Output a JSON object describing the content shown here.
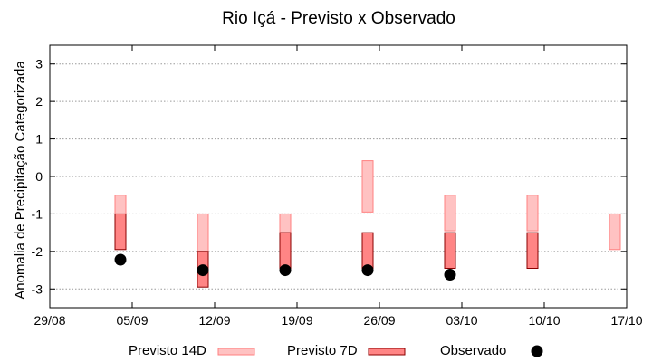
{
  "chart_data": {
    "type": "range-bar",
    "title": "Rio Içá - Previsto x Observado",
    "xlabel": "",
    "ylabel": "Anomalia de Precipitação Categorizada",
    "ylim": [
      -3.5,
      3.5
    ],
    "yticks": [
      3,
      2,
      1,
      0,
      -1,
      -2,
      -3
    ],
    "xlim_days": [
      0,
      49
    ],
    "x_tick_labels": [
      "29/08",
      "05/09",
      "12/09",
      "19/09",
      "26/09",
      "03/10",
      "10/10",
      "17/10"
    ],
    "grid": "horizontal dotted",
    "legend_position": "bottom",
    "colors": {
      "p14_fill": "#ffc2c2",
      "p14_stroke": "#ff8080",
      "p7_fill": "#ff8585",
      "p7_stroke": "#8b0000",
      "obs": "#000000"
    },
    "series": [
      {
        "name": "Previsto 14D",
        "x": [
          "04/09",
          "11/09",
          "18/09",
          "25/09",
          "02/10",
          "09/10",
          "16/10"
        ],
        "low": [
          -1.0,
          -2.0,
          -1.5,
          -0.95,
          -1.45,
          -1.45,
          -1.95
        ],
        "high": [
          -0.5,
          -1.0,
          -1.0,
          0.42,
          -0.5,
          -0.5,
          -1.0
        ]
      },
      {
        "name": "Previsto 7D",
        "x": [
          "04/09",
          "11/09",
          "18/09",
          "25/09",
          "02/10",
          "09/10"
        ],
        "low": [
          -1.95,
          -2.95,
          -2.45,
          -2.45,
          -2.45,
          -2.45
        ],
        "high": [
          -1.0,
          -2.0,
          -1.5,
          -1.5,
          -1.5,
          -1.5
        ]
      },
      {
        "name": "Observado",
        "x": [
          "04/09",
          "11/09",
          "18/09",
          "25/09",
          "02/10"
        ],
        "values": [
          -2.22,
          -2.5,
          -2.5,
          -2.5,
          -2.62
        ]
      }
    ]
  }
}
